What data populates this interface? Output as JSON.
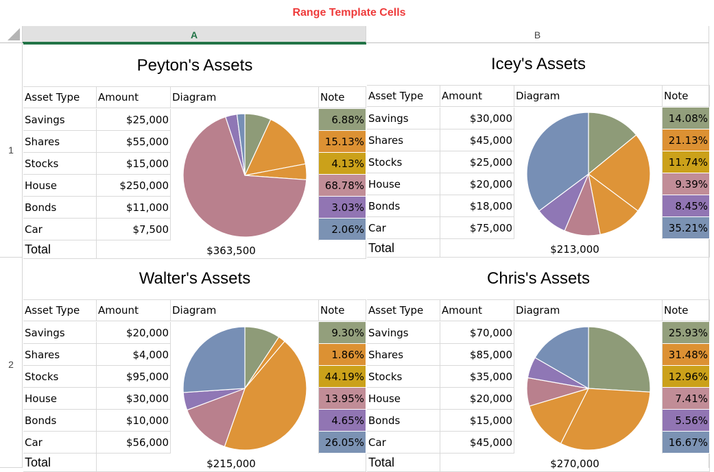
{
  "title": "Range Template Cells",
  "columns": [
    "A",
    "B"
  ],
  "rows": [
    "1",
    "2"
  ],
  "table_headers": {
    "type": "Asset Type",
    "amount": "Amount",
    "diagram": "Diagram",
    "note": "Note"
  },
  "total_label": "Total",
  "note_colors": [
    "#939f7c",
    "#dc9133",
    "#cba11a",
    "#c18d97",
    "#9175b3",
    "#7b92b3"
  ],
  "pie_colors": [
    "#8e9b78",
    "#de9438",
    "#de9438",
    "#b9808d",
    "#8f77b5",
    "#778fb5"
  ],
  "blocks": [
    {
      "title": "Peyton's Assets",
      "assets": [
        {
          "type": "Savings",
          "amount": "$25,000",
          "note": "6.88%"
        },
        {
          "type": "Shares",
          "amount": "$55,000",
          "note": "15.13%"
        },
        {
          "type": "Stocks",
          "amount": "$15,000",
          "note": "4.13%"
        },
        {
          "type": "House",
          "amount": "$250,000",
          "note": "68.78%"
        },
        {
          "type": "Bonds",
          "amount": "$11,000",
          "note": "3.03%"
        },
        {
          "type": "Car",
          "amount": "$7,500",
          "note": "2.06%"
        }
      ],
      "total": "$363,500"
    },
    {
      "title": "Icey's Assets",
      "assets": [
        {
          "type": "Savings",
          "amount": "$30,000",
          "note": "14.08%"
        },
        {
          "type": "Shares",
          "amount": "$45,000",
          "note": "21.13%"
        },
        {
          "type": "Stocks",
          "amount": "$25,000",
          "note": "11.74%"
        },
        {
          "type": "House",
          "amount": "$20,000",
          "note": "9.39%"
        },
        {
          "type": "Bonds",
          "amount": "$18,000",
          "note": "8.45%"
        },
        {
          "type": "Car",
          "amount": "$75,000",
          "note": "35.21%"
        }
      ],
      "total": "$213,000"
    },
    {
      "title": "Walter's Assets",
      "assets": [
        {
          "type": "Savings",
          "amount": "$20,000",
          "note": "9.30%"
        },
        {
          "type": "Shares",
          "amount": "$4,000",
          "note": "1.86%"
        },
        {
          "type": "Stocks",
          "amount": "$95,000",
          "note": "44.19%"
        },
        {
          "type": "House",
          "amount": "$30,000",
          "note": "13.95%"
        },
        {
          "type": "Bonds",
          "amount": "$10,000",
          "note": "4.65%"
        },
        {
          "type": "Car",
          "amount": "$56,000",
          "note": "26.05%"
        }
      ],
      "total": "$215,000"
    },
    {
      "title": "Chris's Assets",
      "assets": [
        {
          "type": "Savings",
          "amount": "$70,000",
          "note": "25.93%"
        },
        {
          "type": "Shares",
          "amount": "$85,000",
          "note": "31.48%"
        },
        {
          "type": "Stocks",
          "amount": "$35,000",
          "note": "12.96%"
        },
        {
          "type": "House",
          "amount": "$20,000",
          "note": "7.41%"
        },
        {
          "type": "Bonds",
          "amount": "$15,000",
          "note": "5.56%"
        },
        {
          "type": "Car",
          "amount": "$45,000",
          "note": "16.67%"
        }
      ],
      "total": "$270,000"
    }
  ]
}
